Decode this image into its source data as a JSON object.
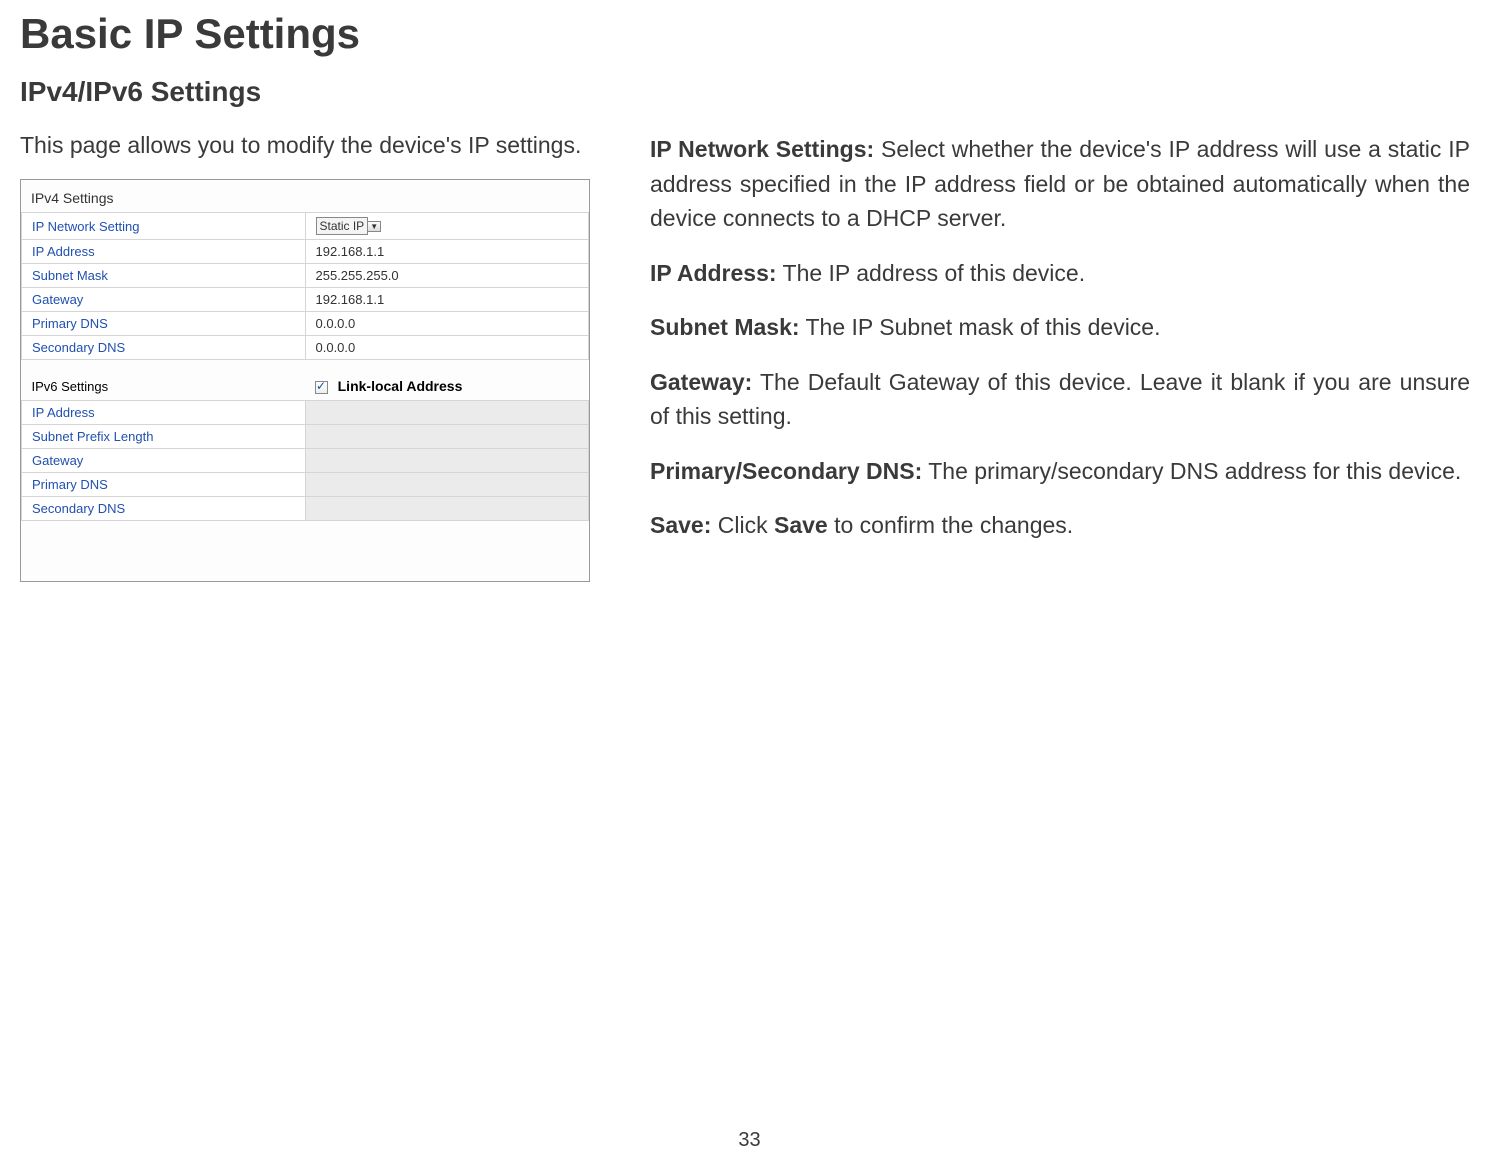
{
  "title": "Basic IP Settings",
  "subtitle": "IPv4/IPv6 Settings",
  "intro": "This page allows you to modify the device's IP settings.",
  "ipv4": {
    "header": "IPv4 Settings",
    "rows": {
      "networkSettingLabel": "IP Network Setting",
      "networkSettingValue": "Static IP",
      "ipLabel": "IP Address",
      "ipValue": "192.168.1.1",
      "subnetLabel": "Subnet Mask",
      "subnetValue": "255.255.255.0",
      "gatewayLabel": "Gateway",
      "gatewayValue": "192.168.1.1",
      "pdnsLabel": "Primary DNS",
      "pdnsValue": "0.0.0.0",
      "sdnsLabel": "Secondary DNS",
      "sdnsValue": "0.0.0.0"
    }
  },
  "ipv6": {
    "header": "IPv6 Settings",
    "linkLocal": "Link-local Address",
    "rows": {
      "ipLabel": "IP Address",
      "prefixLabel": "Subnet Prefix Length",
      "gatewayLabel": "Gateway",
      "pdnsLabel": "Primary DNS",
      "sdnsLabel": "Secondary DNS"
    }
  },
  "descriptions": {
    "ipNetworkTerm": "IP Network Settings:",
    "ipNetworkText": " Select whether the device's IP address will use a static IP address specified in the IP address field or be obtained automatically when the device connects to a DHCP server.",
    "ipAddrTerm": "IP Address:",
    "ipAddrText": " The IP address of this device.",
    "subnetTerm": "Subnet Mask:",
    "subnetText": " The IP Subnet mask of this device.",
    "gatewayTerm": "Gateway:",
    "gatewayText": " The Default Gateway of this device. Leave it blank if you are unsure of this setting.",
    "dnsTerm": "Primary/Secondary DNS:",
    "dnsText": " The primary/secondary DNS address for this device.",
    "saveTerm": "Save:",
    "saveText1": " Click ",
    "saveBold": "Save",
    "saveText2": " to confirm the changes."
  },
  "pageNumber": "33"
}
